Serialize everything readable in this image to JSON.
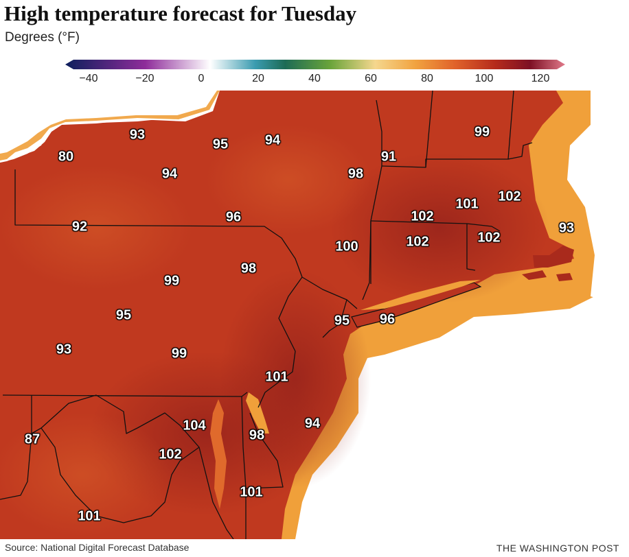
{
  "header": {
    "title": "High temperature forecast for Tuesday",
    "subtitle": "Degrees (°F)"
  },
  "legend": {
    "ticks": [
      "−40",
      "−20",
      "0",
      "20",
      "40",
      "60",
      "80",
      "100",
      "120"
    ],
    "range": [
      -50,
      125
    ],
    "colors": [
      "#0d1f5c",
      "#8e2c9a",
      "#ffffff",
      "#3a9bb0",
      "#1d6b55",
      "#6aa43a",
      "#f5d78e",
      "#f1a340",
      "#e0622a",
      "#b52b1c",
      "#7d1024",
      "#e07a8a"
    ]
  },
  "map": {
    "colors": {
      "land_hot": "#c0391f",
      "land_hotter": "#a92a1c",
      "coast_warm": "#f0a03a",
      "state_line": "#111111",
      "water": "#ffffff"
    },
    "labels": [
      {
        "value": "93"
      },
      {
        "value": "80"
      },
      {
        "value": "95"
      },
      {
        "value": "94"
      },
      {
        "value": "94"
      },
      {
        "value": "91"
      },
      {
        "value": "99"
      },
      {
        "value": "98"
      },
      {
        "value": "102"
      },
      {
        "value": "101"
      },
      {
        "value": "92"
      },
      {
        "value": "96"
      },
      {
        "value": "102"
      },
      {
        "value": "93"
      },
      {
        "value": "102"
      },
      {
        "value": "102"
      },
      {
        "value": "100"
      },
      {
        "value": "98"
      },
      {
        "value": "99"
      },
      {
        "value": "95"
      },
      {
        "value": "95"
      },
      {
        "value": "96"
      },
      {
        "value": "93"
      },
      {
        "value": "99"
      },
      {
        "value": "101"
      },
      {
        "value": "94"
      },
      {
        "value": "104"
      },
      {
        "value": "87"
      },
      {
        "value": "98"
      },
      {
        "value": "102"
      },
      {
        "value": "101"
      },
      {
        "value": "101"
      }
    ]
  },
  "footer": {
    "source": "Source: National Digital Forecast Database",
    "credit": "THE WASHINGTON POST"
  }
}
